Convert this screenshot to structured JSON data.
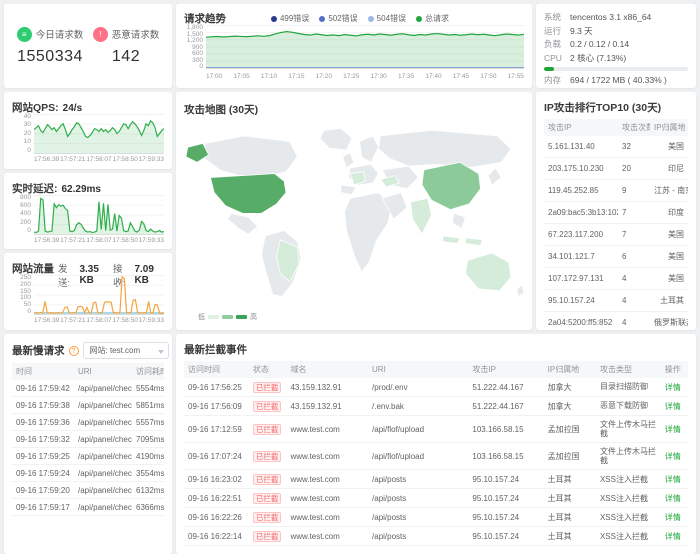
{
  "colors": {
    "accent_green": "#20a53a",
    "stat_icon_green": "#2ecc71",
    "stat_icon_red": "#ff7285",
    "badge_red": "#f56c6c",
    "chart_green": "#2fae4c",
    "chart_orange": "#f5a33d",
    "chart_blue": "#8fcbe0",
    "map_high": "#57ad68",
    "map_medium": "#8ccb99",
    "map_low": "#d6ecdb"
  },
  "stats": {
    "today": {
      "label": "今日请求数",
      "value": "1550334"
    },
    "malicious": {
      "label": "恶意请求数",
      "value": "142"
    }
  },
  "trend": {
    "title": "请求趋势",
    "legend": [
      {
        "label": "499错误",
        "color": "#2b3a8f"
      },
      {
        "label": "502错误",
        "color": "#5470c6"
      },
      {
        "label": "504错误",
        "color": "#9db7e6"
      },
      {
        "label": "总请求",
        "color": "#21a63d"
      }
    ],
    "yticks": [
      "1,800",
      "1,500",
      "1,200",
      "900",
      "600",
      "300",
      "0"
    ],
    "xticks": [
      "17:00",
      "17:05",
      "17:10",
      "17:15",
      "17:20",
      "17:25",
      "17:30",
      "17:35",
      "17:40",
      "17:45",
      "17:50",
      "17:55"
    ],
    "chart": {
      "type": "area",
      "ylim": [
        0,
        1800
      ],
      "series": [
        {
          "name": "总请求",
          "color": "#21a63d",
          "fill": true,
          "fill_opacity": 0.18,
          "values": [
            1290,
            1305,
            1320,
            1298,
            1312,
            1335,
            1322,
            1308,
            1330,
            1348,
            1326,
            1355,
            1430,
            1490,
            1525,
            1495,
            1445,
            1402,
            1380,
            1422,
            1392,
            1362,
            1385,
            1352,
            1402,
            1372,
            1342,
            1392,
            1412,
            1382,
            1422,
            1402,
            1372,
            1412,
            1432,
            1392,
            1362,
            1402,
            1382,
            1422,
            1442,
            1412,
            1382,
            1402,
            1372,
            1392,
            1422,
            1392,
            1412,
            1382,
            1352,
            1392,
            1422,
            1402,
            1382,
            1405
          ]
        },
        {
          "name": "499错误",
          "color": "#2b3a8f",
          "fill": false,
          "values": [
            8,
            8,
            8,
            8,
            8,
            8,
            8,
            8,
            8,
            8,
            8,
            8
          ]
        },
        {
          "name": "502错误",
          "color": "#5470c6",
          "fill": false,
          "values": [
            4,
            4,
            4,
            4,
            4,
            4,
            4,
            4,
            4,
            4,
            4,
            4
          ]
        },
        {
          "name": "504错误",
          "color": "#9db7e6",
          "fill": false,
          "values": [
            2,
            2,
            2,
            2,
            2,
            2,
            2,
            2,
            2,
            2,
            2,
            2
          ]
        }
      ]
    }
  },
  "system": {
    "rows": [
      {
        "label": "系统",
        "value": "tencentos 3.1 x86_64"
      },
      {
        "label": "运行",
        "value": "9.3 天"
      },
      {
        "label": "负载",
        "value": "0.2 / 0.12 / 0.14"
      },
      {
        "label": "CPU",
        "value": "2 核心 (7.13%)",
        "progress": 7.13
      },
      {
        "label": "内存",
        "value": "694 / 1722 MB ( 40.33% )",
        "progress": 40.33
      }
    ]
  },
  "qps": {
    "label": "网站QPS:",
    "value": "24/s",
    "yticks": [
      "40",
      "30",
      "20",
      "10",
      "0"
    ],
    "xticks": [
      "17:56:39",
      "17:57:21",
      "17:58:07",
      "17:58:50",
      "17:59:33"
    ],
    "chart": {
      "type": "area",
      "ylim": [
        0,
        40
      ],
      "series": [
        {
          "name": "qps",
          "color": "#2fae4c",
          "fill": true,
          "fill_opacity": 0.15,
          "values": [
            24,
            26,
            28,
            23,
            21,
            25,
            29,
            27,
            24,
            26,
            22,
            25,
            28,
            30,
            24,
            17,
            20,
            24,
            27,
            31,
            30,
            26,
            22,
            17,
            16,
            18,
            21,
            25,
            24,
            22,
            25,
            22,
            24,
            21,
            23,
            26,
            24,
            20,
            22,
            26,
            30,
            29,
            25,
            29,
            32,
            30,
            27,
            23,
            18,
            23,
            30,
            28,
            33,
            31,
            26,
            17,
            20,
            23,
            25
          ]
        }
      ]
    }
  },
  "latency": {
    "label": "实时延迟:",
    "value": "62.29ms",
    "yticks": [
      "800",
      "600",
      "400",
      "200",
      "0"
    ],
    "xticks": [
      "17:56:39",
      "17:57:21",
      "17:58:07",
      "17:58:50",
      "17:59:33"
    ],
    "chart": {
      "type": "area",
      "ylim": [
        0,
        800
      ],
      "series": [
        {
          "name": "latency",
          "color": "#2fae4c",
          "fill": true,
          "fill_opacity": 0.15,
          "values": [
            40,
            30,
            60,
            730,
            700,
            60,
            40,
            50,
            60,
            620,
            540,
            600,
            570,
            590,
            520,
            480,
            60,
            50,
            70,
            190,
            230,
            200,
            120,
            60,
            40,
            50,
            30,
            40,
            60,
            660,
            90,
            630,
            70,
            610,
            80,
            100,
            420,
            60,
            380,
            330,
            70,
            50,
            60,
            230,
            150,
            60,
            40,
            80,
            260,
            210,
            70,
            50,
            100,
            60,
            40,
            50,
            70,
            40,
            50
          ]
        }
      ]
    }
  },
  "traffic": {
    "label": "网站流量",
    "send_label": "发送:",
    "send_value": "3.35 KB",
    "recv_label": "接收:",
    "recv_value": "7.09 KB",
    "yticks": [
      "250",
      "200",
      "150",
      "100",
      "50",
      "0"
    ],
    "xticks": [
      "17:56:39",
      "17:57:21",
      "17:58:07",
      "17:58:50",
      "17:59:33"
    ],
    "chart": {
      "type": "line",
      "ylim": [
        0,
        250
      ],
      "series": [
        {
          "name": "接收",
          "color": "#8fcbe0",
          "fill": true,
          "fill_opacity": 0.45,
          "values": [
            7,
            7,
            7,
            7,
            7,
            7,
            7,
            7,
            7,
            7,
            7,
            7
          ]
        },
        {
          "name": "发送",
          "color": "#f5a33d",
          "fill": false,
          "values": [
            5,
            8,
            6,
            9,
            7,
            82,
            10,
            6,
            8,
            5,
            7,
            9,
            6,
            8,
            42,
            46,
            8,
            6,
            9,
            7,
            46,
            49,
            45,
            9,
            42,
            8,
            6,
            72,
            76,
            9,
            8,
            11,
            74,
            79,
            77,
            75,
            8,
            9,
            6,
            8,
            238,
            228,
            10,
            8,
            9,
            88,
            92,
            12,
            7,
            6,
            9,
            7,
            80,
            8,
            6,
            62,
            58,
            7,
            5,
            6
          ]
        }
      ]
    }
  },
  "map": {
    "title": "攻击地图 (30天)",
    "legend_low": "低",
    "legend_high": "高",
    "countries": [
      {
        "name": "united-states",
        "level": "high"
      },
      {
        "name": "china",
        "level": "medium"
      },
      {
        "name": "australia",
        "level": "low"
      },
      {
        "name": "brazil",
        "level": "low"
      },
      {
        "name": "india",
        "level": "low"
      },
      {
        "name": "indonesia",
        "level": "low"
      },
      {
        "name": "france",
        "level": "low"
      },
      {
        "name": "turkey",
        "level": "low"
      }
    ]
  },
  "rank": {
    "title": "IP攻击排行TOP10 (30天)",
    "columns": [
      "攻击IP",
      "攻击次数",
      "IP归属地"
    ],
    "col_types": [
      "text",
      "text",
      "text"
    ],
    "rows": [
      [
        "5.161.131.40",
        "32",
        "美国"
      ],
      [
        "203.175.10.230",
        "20",
        "印尼"
      ],
      [
        "119.45.252.85",
        "9",
        "江苏 - 南京"
      ],
      [
        "2a09:bac5:3b13:1028:1...",
        "7",
        "印度"
      ],
      [
        "67.223.117.200",
        "7",
        "美国"
      ],
      [
        "34.101.121.7",
        "6",
        "美国"
      ],
      [
        "107.172.97.131",
        "4",
        "美国"
      ],
      [
        "95.10.157.24",
        "4",
        "土耳其"
      ],
      [
        "2a04:5200:ff5:852",
        "4",
        "俄罗斯联邦"
      ]
    ]
  },
  "slow": {
    "title": "最新慢请求",
    "site_select": "网站: test.com",
    "columns": [
      "时间",
      "URI",
      "访问耗时"
    ],
    "col_types": [
      "text",
      "text",
      "text"
    ],
    "rows": [
      [
        "09-16 17:59:42",
        "/api/panel/checkDo...",
        "5554ms"
      ],
      [
        "09-16 17:59:38",
        "/api/panel/checkDo...",
        "5851ms"
      ],
      [
        "09-16 17:59:36",
        "/api/panel/checkDo...",
        "5557ms"
      ],
      [
        "09-16 17:59:32",
        "/api/panel/checkDo...",
        "7095ms"
      ],
      [
        "09-16 17:59:25",
        "/api/panel/checkDo...",
        "4190ms"
      ],
      [
        "09-16 17:59:24",
        "/api/panel/checkDo...",
        "3554ms"
      ],
      [
        "09-16 17:59:20",
        "/api/panel/checkDo...",
        "6132ms"
      ],
      [
        "09-16 17:59:17",
        "/api/panel/checkDo...",
        "6366ms"
      ]
    ]
  },
  "events": {
    "title": "最新拦截事件",
    "columns": [
      "访问时间",
      "状态",
      "域名",
      "URI",
      "攻击IP",
      "IP归属地",
      "攻击类型",
      "操作"
    ],
    "col_types": [
      "text",
      "badge",
      "text",
      "text",
      "text",
      "text",
      "text",
      "link"
    ],
    "rows": [
      [
        "09-16 17:56:25",
        "已拦截",
        "43.159.132.91",
        "/prod/.env",
        "51.222.44.167",
        "加拿大",
        "目录扫描防御",
        "详情"
      ],
      [
        "09-16 17:56:09",
        "已拦截",
        "43.159.132.91",
        "/.env.bak",
        "51.222.44.167",
        "加拿大",
        "恶意下载防御",
        "详情"
      ],
      [
        "09-16 17:12:59",
        "已拦截",
        "www.test.com",
        "/api/flof/upload",
        "103.166.58.15",
        "孟加拉国",
        "文件上传木马拦截",
        "详情"
      ],
      [
        "09-16 17:07:24",
        "已拦截",
        "www.test.com",
        "/api/flof/upload",
        "103.166.58.15",
        "孟加拉国",
        "文件上传木马拦截",
        "详情"
      ],
      [
        "09-16 16:23:02",
        "已拦截",
        "www.test.com",
        "/api/posts",
        "95.10.157.24",
        "土耳其",
        "XSS注入拦截",
        "详情"
      ],
      [
        "09-16 16:22:51",
        "已拦截",
        "www.test.com",
        "/api/posts",
        "95.10.157.24",
        "土耳其",
        "XSS注入拦截",
        "详情"
      ],
      [
        "09-16 16:22:26",
        "已拦截",
        "www.test.com",
        "/api/posts",
        "95.10.157.24",
        "土耳其",
        "XSS注入拦截",
        "详情"
      ],
      [
        "09-16 16:22:14",
        "已拦截",
        "www.test.com",
        "/api/posts",
        "95.10.157.24",
        "土耳其",
        "XSS注入拦截",
        "详情"
      ]
    ]
  }
}
